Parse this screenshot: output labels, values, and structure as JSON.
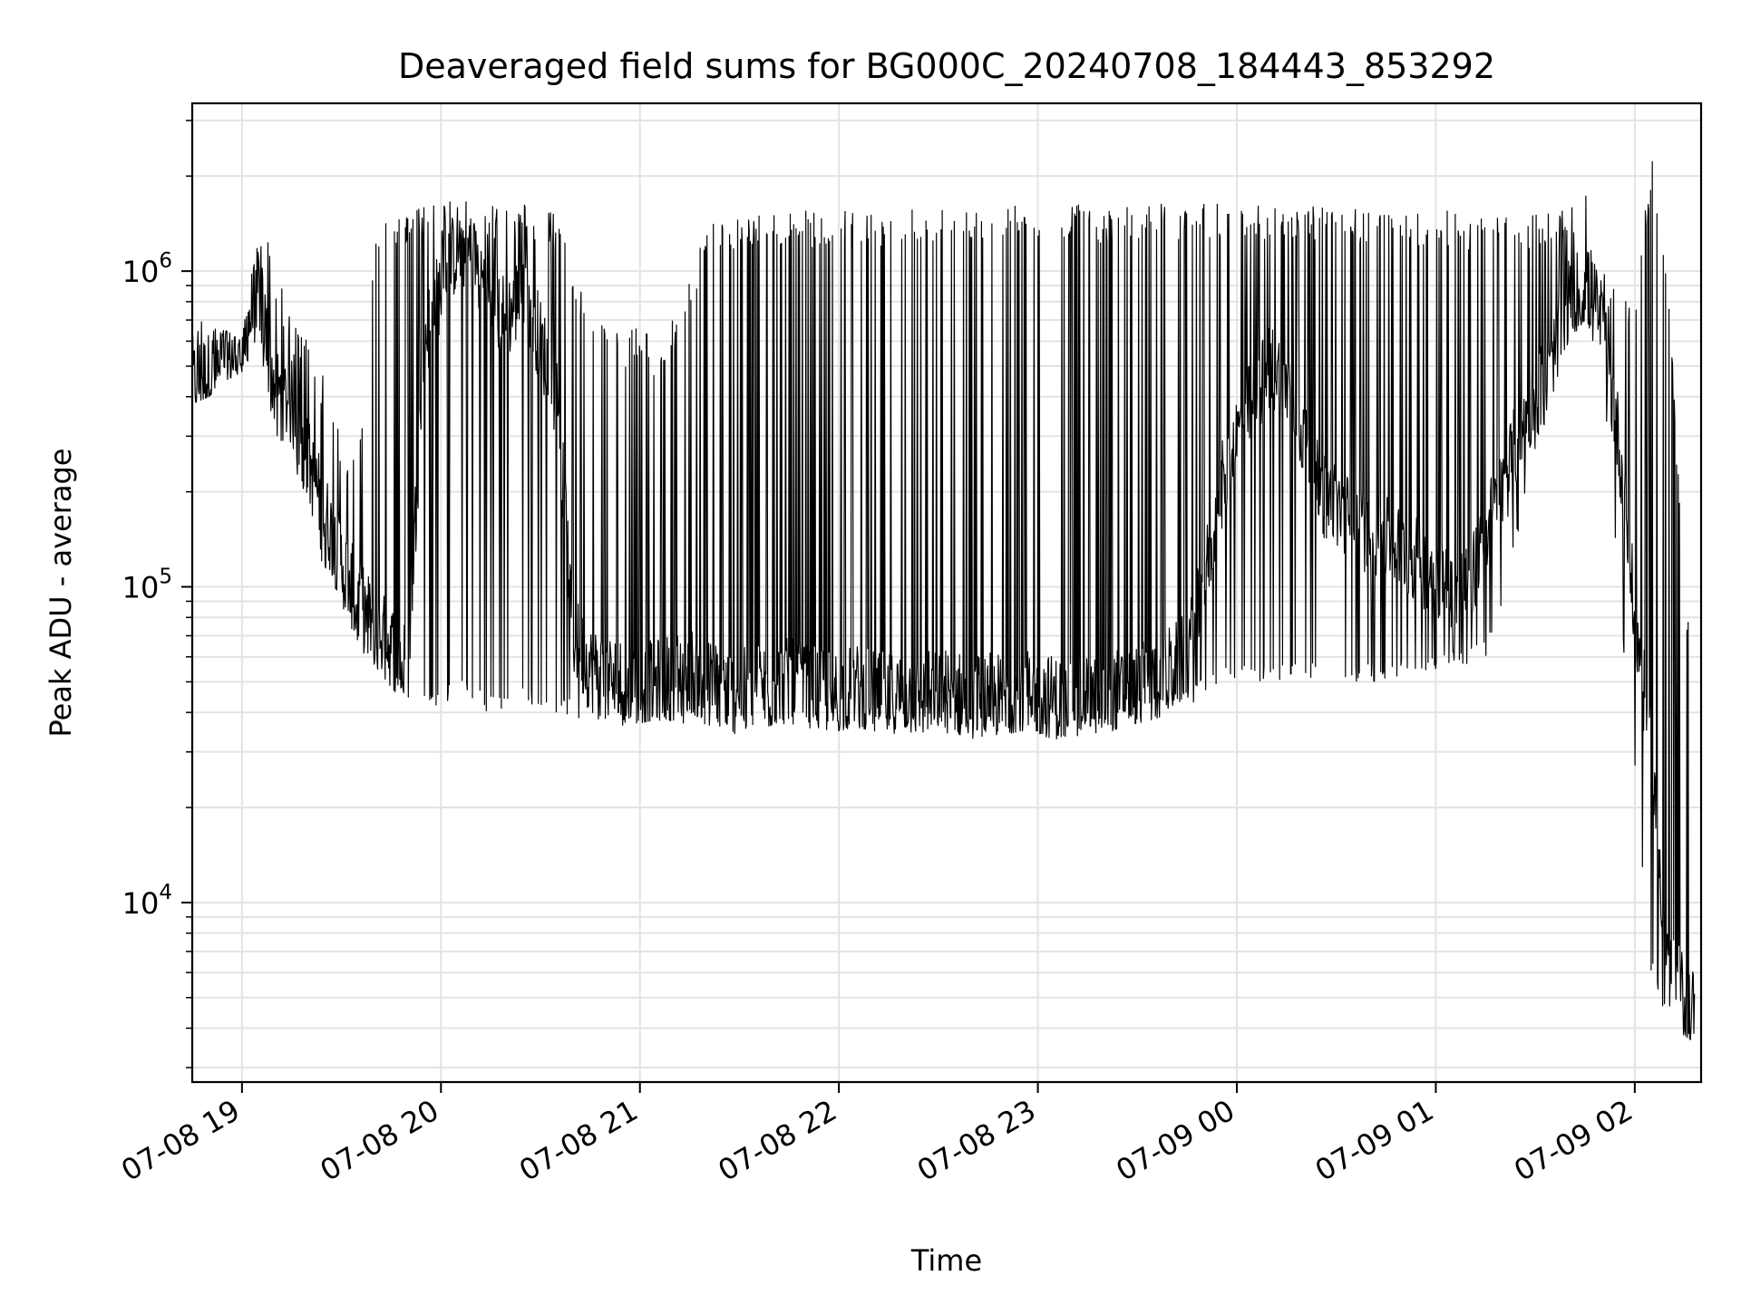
{
  "chart_data": {
    "type": "line",
    "title": "Deaveraged field sums for BG000C_20240708_184443_853292",
    "xlabel": "Time",
    "ylabel": "Peak ADU - average",
    "yscale": "log",
    "xlim": [
      "2024-07-08 18:45",
      "2024-07-09 02:20"
    ],
    "ylim": [
      2700,
      3400000
    ],
    "grid": true,
    "line_color": "#000000",
    "x_ticks": [
      {
        "t": "2024-07-08 19:00",
        "label": "07-08 19"
      },
      {
        "t": "2024-07-08 20:00",
        "label": "07-08 20"
      },
      {
        "t": "2024-07-08 21:00",
        "label": "07-08 21"
      },
      {
        "t": "2024-07-08 22:00",
        "label": "07-08 22"
      },
      {
        "t": "2024-07-08 23:00",
        "label": "07-08 23"
      },
      {
        "t": "2024-07-09 00:00",
        "label": "07-09 00"
      },
      {
        "t": "2024-07-09 01:00",
        "label": "07-09 01"
      },
      {
        "t": "2024-07-09 02:00",
        "label": "07-09 02"
      }
    ],
    "y_major_ticks": [
      {
        "value": 10000,
        "base": "10",
        "exp": "4"
      },
      {
        "value": 100000,
        "base": "10",
        "exp": "5"
      },
      {
        "value": 1000000,
        "base": "10",
        "exp": "6"
      }
    ],
    "series": [
      {
        "x": [
          "2024-07-08 18:45",
          "2024-07-08 18:50",
          "2024-07-08 18:55",
          "2024-07-08 19:00",
          "2024-07-08 19:05",
          "2024-07-08 19:10",
          "2024-07-08 19:15",
          "2024-07-08 19:20",
          "2024-07-08 19:25",
          "2024-07-08 19:30",
          "2024-07-08 19:35",
          "2024-07-08 19:40",
          "2024-07-08 19:45",
          "2024-07-08 19:50",
          "2024-07-08 19:55",
          "2024-07-08 20:00",
          "2024-07-08 20:05",
          "2024-07-08 20:10",
          "2024-07-08 20:15",
          "2024-07-08 20:20",
          "2024-07-08 20:25",
          "2024-07-08 20:30",
          "2024-07-08 20:35",
          "2024-07-08 20:40",
          "2024-07-08 20:45",
          "2024-07-08 20:50",
          "2024-07-08 20:55",
          "2024-07-08 21:00",
          "2024-07-08 21:05",
          "2024-07-08 21:10",
          "2024-07-08 21:15",
          "2024-07-08 21:20",
          "2024-07-08 21:25",
          "2024-07-08 21:30",
          "2024-07-08 21:35",
          "2024-07-08 21:40",
          "2024-07-08 21:45",
          "2024-07-08 21:50",
          "2024-07-08 21:55",
          "2024-07-08 22:00",
          "2024-07-08 22:05",
          "2024-07-08 22:10",
          "2024-07-08 22:15",
          "2024-07-08 22:20",
          "2024-07-08 22:25",
          "2024-07-08 22:30",
          "2024-07-08 22:35",
          "2024-07-08 22:40",
          "2024-07-08 22:45",
          "2024-07-08 22:50",
          "2024-07-08 22:55",
          "2024-07-08 23:00",
          "2024-07-08 23:05",
          "2024-07-08 23:10",
          "2024-07-08 23:15",
          "2024-07-08 23:20",
          "2024-07-08 23:25",
          "2024-07-08 23:30",
          "2024-07-08 23:35",
          "2024-07-08 23:40",
          "2024-07-08 23:45",
          "2024-07-08 23:50",
          "2024-07-08 23:55",
          "2024-07-09 00:00",
          "2024-07-09 00:05",
          "2024-07-09 00:10",
          "2024-07-09 00:15",
          "2024-07-09 00:20",
          "2024-07-09 00:25",
          "2024-07-09 00:30",
          "2024-07-09 00:35",
          "2024-07-09 00:40",
          "2024-07-09 00:45",
          "2024-07-09 00:50",
          "2024-07-09 00:55",
          "2024-07-09 01:00",
          "2024-07-09 01:05",
          "2024-07-09 01:10",
          "2024-07-09 01:15",
          "2024-07-09 01:20",
          "2024-07-09 01:25",
          "2024-07-09 01:30",
          "2024-07-09 01:35",
          "2024-07-09 01:40",
          "2024-07-09 01:45",
          "2024-07-09 01:50",
          "2024-07-09 01:55",
          "2024-07-09 02:00",
          "2024-07-09 02:05",
          "2024-07-09 02:10",
          "2024-07-09 02:15",
          "2024-07-09 02:18"
        ],
        "y": [
          450000,
          470000,
          520000,
          560000,
          900000,
          420000,
          380000,
          250000,
          170000,
          120000,
          90000,
          75000,
          65000,
          55000,
          600000,
          900000,
          1200000,
          1100000,
          800000,
          700000,
          900000,
          600000,
          400000,
          70000,
          55000,
          52000,
          50000,
          48000,
          50000,
          52000,
          55000,
          50000,
          48000,
          46000,
          48000,
          50000,
          50000,
          48000,
          47000,
          47000,
          48000,
          46000,
          45000,
          46000,
          45000,
          47000,
          46000,
          44000,
          46000,
          44000,
          45000,
          46000,
          44000,
          43000,
          46000,
          45000,
          47000,
          48000,
          50000,
          55000,
          60000,
          100000,
          200000,
          300000,
          400000,
          500000,
          450000,
          300000,
          200000,
          180000,
          160000,
          150000,
          140000,
          130000,
          120000,
          110000,
          100000,
          100000,
          150000,
          200000,
          300000,
          400000,
          500000,
          800000,
          900000,
          700000,
          300000,
          80000,
          30000,
          6000,
          5000,
          4500
        ],
        "y_low": [
          380000,
          400000,
          450000,
          480000,
          600000,
          300000,
          250000,
          170000,
          110000,
          85000,
          65000,
          55000,
          48000,
          42000,
          40000,
          42000,
          45000,
          42000,
          40000,
          40000,
          42000,
          40000,
          40000,
          38000,
          37000,
          37000,
          36000,
          37000,
          38000,
          37000,
          36000,
          35000,
          35000,
          34000,
          35000,
          36000,
          37000,
          36000,
          35000,
          35000,
          36000,
          35000,
          34000,
          35000,
          34000,
          35000,
          34000,
          33000,
          34000,
          34000,
          35000,
          34000,
          33000,
          33000,
          35000,
          34000,
          36000,
          37000,
          38000,
          40000,
          42000,
          45000,
          48000,
          50000,
          50000,
          50000,
          50000,
          50000,
          50000,
          50000,
          50000,
          50000,
          50000,
          52000,
          52000,
          55000,
          55000,
          55000,
          60000,
          80000,
          150000,
          250000,
          400000,
          600000,
          700000,
          500000,
          100000,
          25000,
          6000,
          4000,
          3800,
          3600
        ],
        "y_high": [
          700000,
          800000,
          650000,
          600000,
          1500000,
          1100000,
          700000,
          600000,
          450000,
          300000,
          250000,
          1400000,
          1500000,
          1600000,
          1600000,
          1650000,
          1700000,
          1650000,
          1650000,
          1600000,
          1650000,
          1600000,
          1500000,
          1000000,
          800000,
          700000,
          600000,
          700000,
          600000,
          700000,
          1000000,
          1400000,
          1500000,
          1500000,
          1550000,
          1550000,
          1550000,
          1550000,
          1550000,
          1550000,
          1550000,
          1550000,
          1600000,
          1600000,
          1600000,
          1600000,
          1650000,
          1650000,
          1600000,
          1600000,
          1650000,
          1650000,
          1650000,
          1650000,
          1600000,
          1600000,
          1650000,
          1650000,
          1650000,
          1650000,
          1650000,
          1650000,
          1650000,
          1650000,
          1650000,
          1650000,
          1650000,
          1600000,
          1600000,
          1600000,
          1600000,
          1600000,
          1550000,
          1550000,
          1550000,
          1550000,
          1550000,
          1500000,
          1500000,
          1500000,
          1500000,
          1500000,
          1600000,
          1700000,
          1800000,
          1000000,
          900000,
          800000,
          2400000,
          1000000,
          100000,
          80000
        ]
      }
    ]
  }
}
